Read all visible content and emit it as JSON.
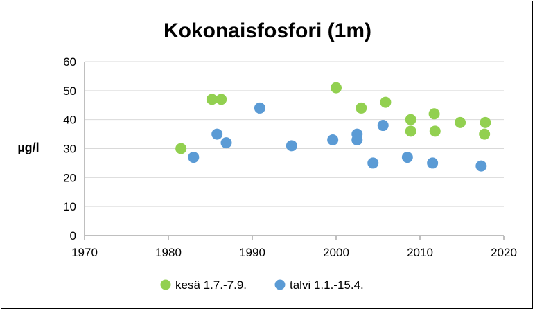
{
  "chart_data": {
    "type": "scatter",
    "title": "Kokonaisfosfori (1m)",
    "xlabel": "",
    "ylabel": "µg/l",
    "xlim": [
      1970,
      2020
    ],
    "ylim": [
      0,
      60
    ],
    "xticks": [
      1970,
      1980,
      1990,
      2000,
      2010,
      2020
    ],
    "yticks": [
      0,
      10,
      20,
      30,
      40,
      50,
      60
    ],
    "grid": "y-major",
    "legend": "bottom",
    "series": [
      {
        "name": "kesä 1.7.-7.9.",
        "color": "#92d050",
        "points": [
          {
            "x": 1981.5,
            "y": 30
          },
          {
            "x": 1985.2,
            "y": 47
          },
          {
            "x": 1986.3,
            "y": 47
          },
          {
            "x": 2000.0,
            "y": 51
          },
          {
            "x": 2003.0,
            "y": 44
          },
          {
            "x": 2005.9,
            "y": 46
          },
          {
            "x": 2008.9,
            "y": 40
          },
          {
            "x": 2008.9,
            "y": 36
          },
          {
            "x": 2011.7,
            "y": 42
          },
          {
            "x": 2011.8,
            "y": 36
          },
          {
            "x": 2014.8,
            "y": 39
          },
          {
            "x": 2017.8,
            "y": 39
          },
          {
            "x": 2017.7,
            "y": 35
          }
        ]
      },
      {
        "name": "talvi 1.1.-15.4.",
        "color": "#5b9bd5",
        "points": [
          {
            "x": 1983.0,
            "y": 27
          },
          {
            "x": 1985.8,
            "y": 35
          },
          {
            "x": 1986.9,
            "y": 32
          },
          {
            "x": 1990.9,
            "y": 44
          },
          {
            "x": 1994.7,
            "y": 31
          },
          {
            "x": 1999.6,
            "y": 33
          },
          {
            "x": 2002.5,
            "y": 35
          },
          {
            "x": 2002.5,
            "y": 33
          },
          {
            "x": 2004.4,
            "y": 25
          },
          {
            "x": 2005.6,
            "y": 38
          },
          {
            "x": 2008.5,
            "y": 27
          },
          {
            "x": 2011.5,
            "y": 25
          },
          {
            "x": 2017.3,
            "y": 24
          }
        ]
      }
    ]
  }
}
